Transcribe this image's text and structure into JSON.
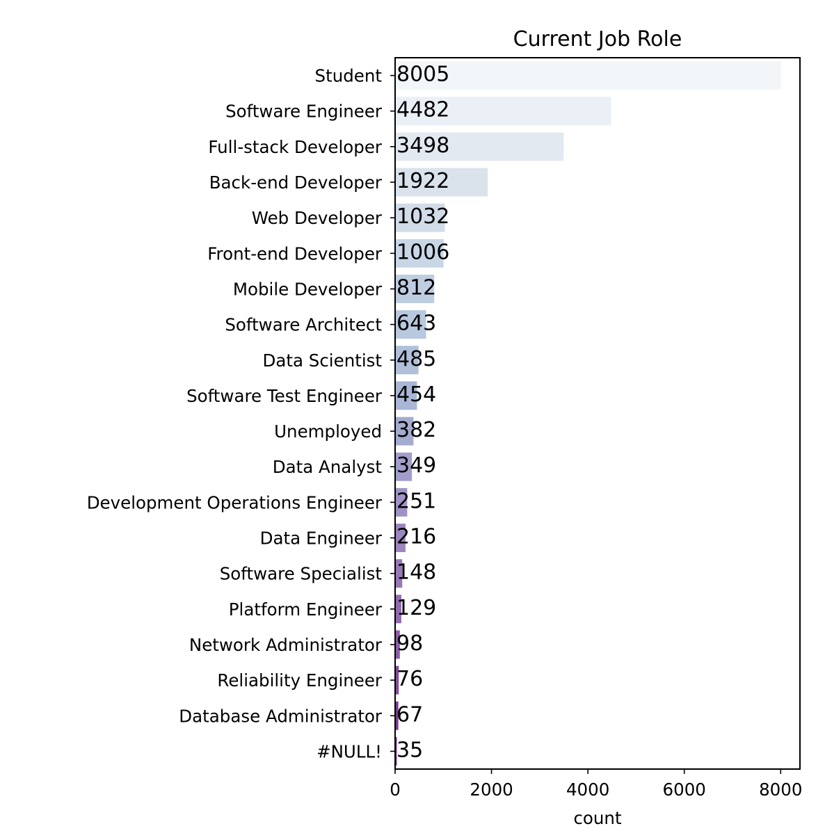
{
  "chart_data": {
    "type": "bar",
    "orientation": "horizontal",
    "title": "Current Job Role",
    "xlabel": "count",
    "ylabel": "",
    "xlim": [
      0,
      8400
    ],
    "xticks": [
      0,
      2000,
      4000,
      6000,
      8000
    ],
    "grid": false,
    "categories": [
      "Student",
      "Software Engineer",
      "Full-stack Developer",
      "Back-end Developer",
      "Web Developer",
      "Front-end Developer",
      "Mobile Developer",
      "Software Architect",
      "Data Scientist",
      "Software Test Engineer",
      "Unemployed",
      "Data Analyst",
      "Development Operations Engineer",
      "Data Engineer",
      "Software Specialist",
      "Platform Engineer",
      "Network Administrator",
      "Reliability Engineer",
      "Database Administrator",
      "#NULL!"
    ],
    "values": [
      8005,
      4482,
      3498,
      1922,
      1032,
      1006,
      812,
      643,
      485,
      454,
      382,
      349,
      251,
      216,
      148,
      129,
      98,
      76,
      67,
      35
    ],
    "colors": [
      "#f2f6f9",
      "#ebf0f6",
      "#e3e9f1",
      "#dae3ec",
      "#d1dce8",
      "#c9d6e5",
      "#bfcde1",
      "#b8c8de",
      "#b0c0da",
      "#a9b6d5",
      "#a4acd0",
      "#a19ecb",
      "#9f93c5",
      "#9b86be",
      "#9779b7",
      "#936caf",
      "#8c5da7",
      "#844c9a",
      "#7a3b8c",
      "#6c2a7c"
    ]
  }
}
